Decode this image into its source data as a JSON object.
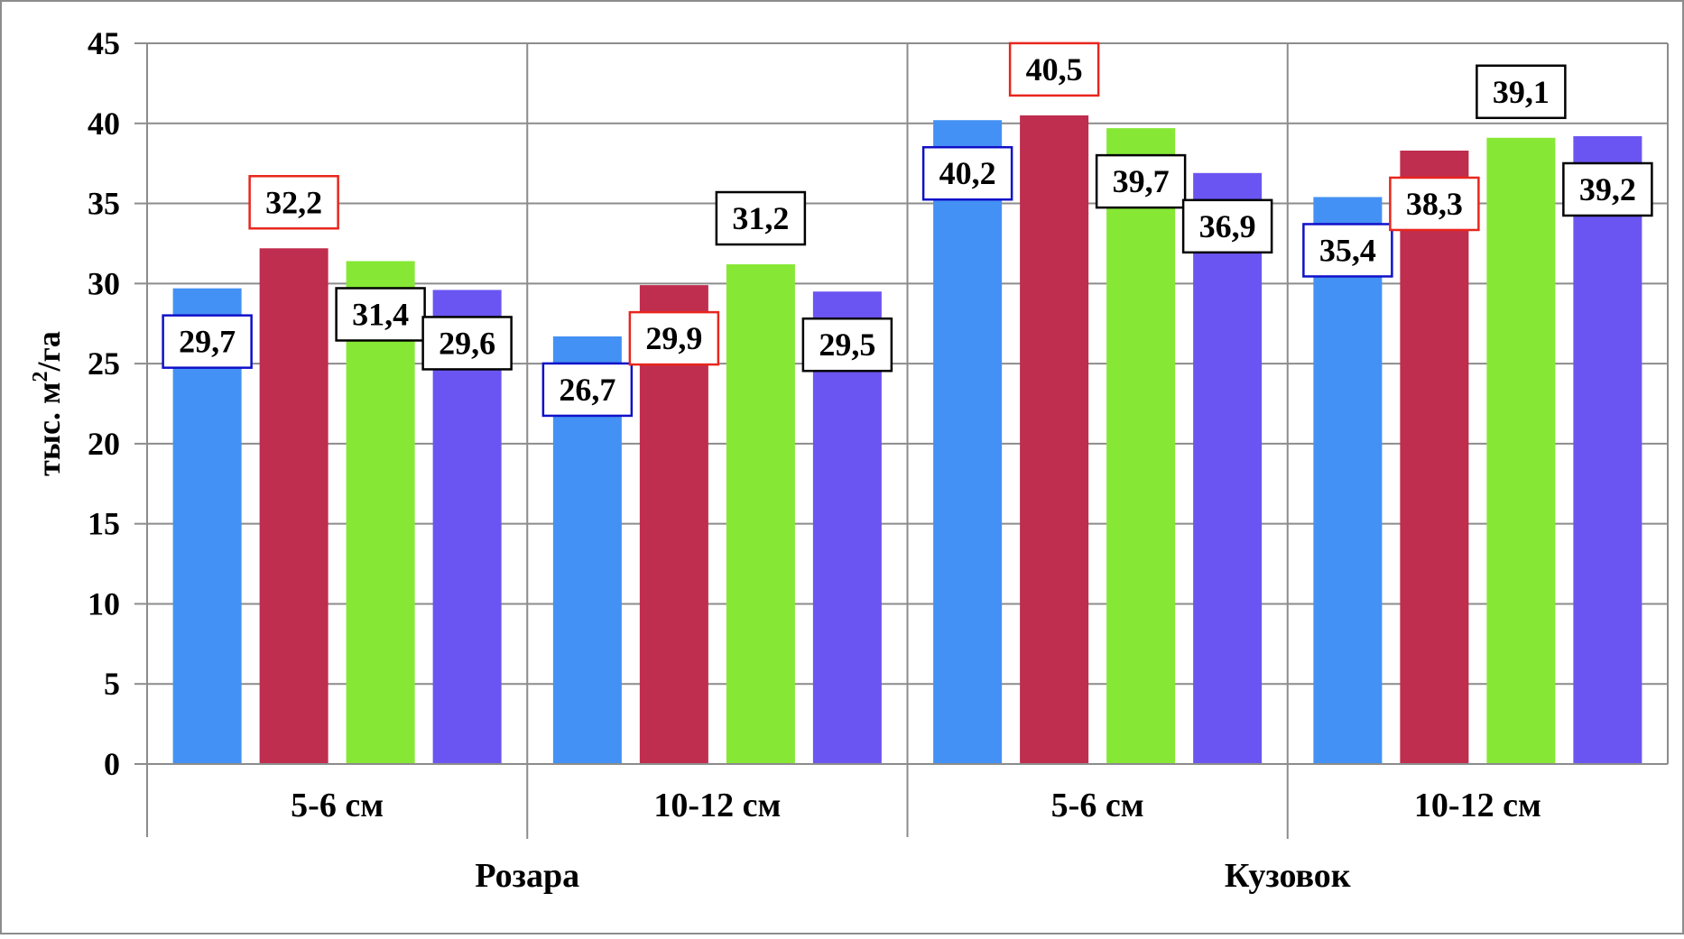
{
  "chart_data": {
    "type": "bar",
    "ylabel": "тыс. м",
    "ylabel_sup": "2",
    "ylabel_suffix": "/га",
    "ylim": [
      0,
      45
    ],
    "yticks": [
      0,
      5,
      10,
      15,
      20,
      25,
      30,
      35,
      40,
      45
    ],
    "grid": true,
    "legend": "none",
    "groups": [
      {
        "name": "Розара",
        "categories": [
          {
            "name": "5-6 см",
            "values": [
              29.7,
              32.2,
              31.4,
              29.6
            ],
            "labels": [
              "29,7",
              "32,2",
              "31,4",
              "29,6"
            ]
          },
          {
            "name": "10-12 см",
            "values": [
              26.7,
              29.9,
              31.2,
              29.5
            ],
            "labels": [
              "26,7",
              "29,9",
              "31,2",
              "29,5"
            ]
          }
        ]
      },
      {
        "name": "Кузовок",
        "categories": [
          {
            "name": "5-6 см",
            "values": [
              40.2,
              40.5,
              39.7,
              36.9
            ],
            "labels": [
              "40,2",
              "40,5",
              "39,7",
              "36,9"
            ]
          },
          {
            "name": "10-12 см",
            "values": [
              35.4,
              38.3,
              39.1,
              39.2
            ],
            "labels": [
              "35,4",
              "38,3",
              "39,1",
              "39,2"
            ]
          }
        ]
      }
    ],
    "series_colors": [
      "#4391F4",
      "#BF2D4F",
      "#86E835",
      "#6A55F2"
    ],
    "label_border_colors": [
      "#1010C8",
      "#E8261E",
      "#000000",
      "#000000"
    ]
  }
}
